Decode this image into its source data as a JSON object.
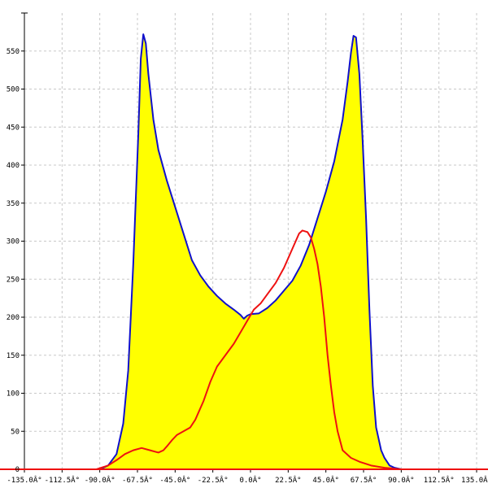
{
  "chart_data": {
    "type": "area",
    "title": "",
    "xlabel": "",
    "ylabel": "",
    "xlim": [
      -135,
      135
    ],
    "ylim": [
      0,
      600
    ],
    "grid": true,
    "x_ticks": [
      -135,
      -112.5,
      -90,
      -67.5,
      -45,
      -22.5,
      0,
      22.5,
      45,
      67.5,
      90,
      112.5,
      135
    ],
    "x_tick_labels": [
      "-135.0Â°",
      "-112.5Â°",
      "-90.0Â°",
      "-67.5Â°",
      "-45.0Â°",
      "-22.5Â°",
      "0.0Â°",
      "22.5Â°",
      "45.0Â°",
      "67.5Â°",
      "90.0Â°",
      "112.5Â°",
      "135.0Â°"
    ],
    "y_ticks": [
      0,
      50,
      100,
      150,
      200,
      250,
      300,
      350,
      400,
      450,
      500,
      550
    ],
    "y_tick_labels": [
      "0",
      "50",
      "100",
      "150",
      "200",
      "250",
      "300",
      "350",
      "400",
      "450",
      "500",
      "550"
    ],
    "series": [
      {
        "color": "#1010cc",
        "fill": "#ffff00",
        "points": [
          [
            -90,
            0
          ],
          [
            -85,
            5
          ],
          [
            -80,
            20
          ],
          [
            -76,
            60
          ],
          [
            -73,
            130
          ],
          [
            -70,
            270
          ],
          [
            -67,
            440
          ],
          [
            -65.5,
            540
          ],
          [
            -64,
            572
          ],
          [
            -62.5,
            560
          ],
          [
            -61,
            520
          ],
          [
            -58,
            460
          ],
          [
            -55,
            420
          ],
          [
            -50,
            380
          ],
          [
            -45,
            345
          ],
          [
            -40,
            310
          ],
          [
            -35,
            275
          ],
          [
            -30,
            255
          ],
          [
            -25,
            240
          ],
          [
            -20,
            228
          ],
          [
            -15,
            218
          ],
          [
            -10,
            210
          ],
          [
            -6,
            203
          ],
          [
            -4,
            198
          ],
          [
            -2,
            202
          ],
          [
            0,
            204
          ],
          [
            5,
            205
          ],
          [
            10,
            212
          ],
          [
            15,
            222
          ],
          [
            20,
            235
          ],
          [
            25,
            248
          ],
          [
            30,
            268
          ],
          [
            35,
            295
          ],
          [
            40,
            330
          ],
          [
            45,
            365
          ],
          [
            50,
            405
          ],
          [
            55,
            460
          ],
          [
            58,
            510
          ],
          [
            60,
            548
          ],
          [
            61.5,
            570
          ],
          [
            63,
            568
          ],
          [
            65,
            520
          ],
          [
            67,
            430
          ],
          [
            69,
            330
          ],
          [
            71,
            210
          ],
          [
            73,
            110
          ],
          [
            75,
            55
          ],
          [
            78,
            25
          ],
          [
            80,
            15
          ],
          [
            83,
            5
          ],
          [
            86,
            2
          ],
          [
            90,
            0
          ]
        ]
      },
      {
        "color": "#ee1111",
        "points": [
          [
            -92,
            0
          ],
          [
            -85,
            5
          ],
          [
            -80,
            12
          ],
          [
            -75,
            20
          ],
          [
            -70,
            25
          ],
          [
            -65,
            28
          ],
          [
            -60,
            25
          ],
          [
            -55,
            22
          ],
          [
            -52,
            25
          ],
          [
            -50,
            30
          ],
          [
            -47,
            38
          ],
          [
            -44,
            45
          ],
          [
            -40,
            50
          ],
          [
            -36,
            55
          ],
          [
            -33,
            65
          ],
          [
            -28,
            90
          ],
          [
            -24,
            115
          ],
          [
            -20,
            135
          ],
          [
            -15,
            150
          ],
          [
            -10,
            165
          ],
          [
            -6,
            180
          ],
          [
            -2,
            195
          ],
          [
            2,
            210
          ],
          [
            6,
            218
          ],
          [
            10,
            230
          ],
          [
            15,
            245
          ],
          [
            20,
            265
          ],
          [
            24,
            285
          ],
          [
            27,
            300
          ],
          [
            29,
            310
          ],
          [
            31,
            314
          ],
          [
            34,
            312
          ],
          [
            36,
            305
          ],
          [
            38,
            290
          ],
          [
            40,
            270
          ],
          [
            42,
            240
          ],
          [
            44,
            200
          ],
          [
            46,
            150
          ],
          [
            48,
            110
          ],
          [
            50,
            75
          ],
          [
            52,
            50
          ],
          [
            55,
            25
          ],
          [
            60,
            15
          ],
          [
            65,
            10
          ],
          [
            72,
            5
          ],
          [
            80,
            2
          ],
          [
            90,
            0
          ],
          [
            135,
            0
          ]
        ]
      }
    ]
  }
}
